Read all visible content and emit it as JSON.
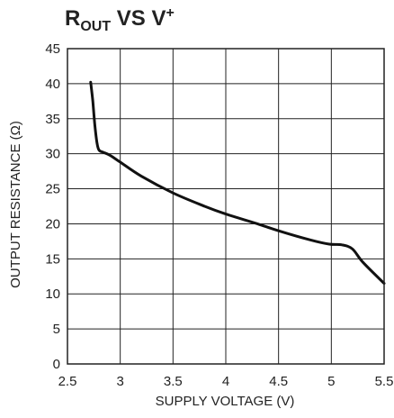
{
  "chart_data": {
    "type": "line",
    "title": {
      "main_1": "R",
      "sub": "OUT",
      "main_2": " VS V",
      "sup": "+"
    },
    "xlabel": "SUPPLY VOLTAGE (V)",
    "ylabel": "OUTPUT RESISTANCE (Ω)",
    "xlim": [
      2.5,
      5.5
    ],
    "ylim": [
      0,
      45
    ],
    "x_ticks": [
      2.5,
      3,
      3.5,
      4,
      4.5,
      5,
      5.5
    ],
    "x_tick_labels": [
      "2.5",
      "3",
      "3.5",
      "4",
      "4.5",
      "5",
      "5.5"
    ],
    "y_ticks": [
      0,
      5,
      10,
      15,
      20,
      25,
      30,
      35,
      40,
      45
    ],
    "y_tick_labels": [
      "0",
      "5",
      "10",
      "15",
      "20",
      "25",
      "30",
      "35",
      "40",
      "45"
    ],
    "grid": true,
    "series": [
      {
        "x": [
          2.72,
          2.74,
          2.76,
          2.78,
          2.8,
          2.84,
          2.9,
          3.0,
          3.2,
          3.5,
          3.8,
          4.0,
          4.3,
          4.5,
          4.8,
          4.98,
          5.1,
          5.2,
          5.3,
          5.5
        ],
        "y": [
          40.2,
          37.5,
          34.0,
          31.5,
          30.5,
          30.2,
          29.8,
          28.8,
          26.8,
          24.4,
          22.5,
          21.4,
          20.0,
          19.0,
          17.7,
          17.1,
          17.0,
          16.4,
          14.5,
          11.5
        ]
      }
    ],
    "colors": {
      "line": "#111111",
      "grid": "#222222",
      "text": "#222222"
    }
  }
}
